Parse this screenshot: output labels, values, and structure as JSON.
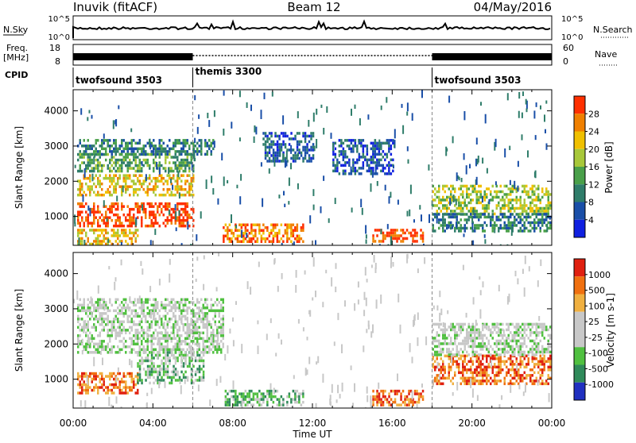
{
  "header": {
    "station": "Inuvik (fitACF)",
    "beam": "Beam 12",
    "date": "04/May/2016"
  },
  "top_panels": {
    "nsky_label": "N.Sky",
    "nsky_ticks": [
      "10^5",
      "10^0"
    ],
    "nsearch_label": "N.Search",
    "nsearch_ticks": [
      "10^5",
      "10^0"
    ],
    "freq_label": "Freq.",
    "freq_unit": "[MHz]",
    "freq_ticks": [
      "18",
      "8"
    ],
    "nave_label": "Nave",
    "nave_ticks": [
      "60",
      "0"
    ],
    "cpid_label": "CPID",
    "cpid_segments": [
      {
        "name": "twofsound 3503",
        "start": 0,
        "end": 6
      },
      {
        "name": "themis 3300",
        "start": 6,
        "end": 18
      },
      {
        "name": "twofsound 3503",
        "start": 18,
        "end": 24
      }
    ]
  },
  "x_axis": {
    "label": "Time UT",
    "ticks": [
      "00:00",
      "04:00",
      "08:00",
      "12:00",
      "16:00",
      "20:00",
      "00:00"
    ]
  },
  "power_panel": {
    "ylabel": "Slant Range [km]",
    "yticks": [
      "4000",
      "3000",
      "2000",
      "1000"
    ],
    "colorbar_label": "Power [dB]",
    "colorbar_ticks": [
      "28",
      "24",
      "20",
      "16",
      "12",
      "8",
      "4"
    ]
  },
  "velocity_panel": {
    "ylabel": "Slant Range [km]",
    "yticks": [
      "4000",
      "3000",
      "2000",
      "1000"
    ],
    "colorbar_label": "Velocity [m s-1]",
    "colorbar_ticks": [
      "1000",
      "500",
      "100",
      "25",
      "-25",
      "-100",
      "-500",
      "-1000"
    ]
  },
  "chart_data": {
    "type": "heatmap",
    "x_range_hours": [
      0,
      24
    ],
    "y_range_km": [
      180,
      4600
    ],
    "power_colors": [
      "#1020e0",
      "#1a4fa8",
      "#2f7d6a",
      "#4aa04a",
      "#a8c83a",
      "#f0c000",
      "#f08000",
      "#ff3000"
    ],
    "velocity_colors": [
      "#2030c0",
      "#2f8a5a",
      "#50c040",
      "#c8c8c8",
      "#c8c8c8",
      "#f0b040",
      "#f07010",
      "#e02010"
    ],
    "power_regions": [
      {
        "t0": 0.2,
        "t1": 6.0,
        "r0": 700,
        "r1": 1400,
        "level": 7
      },
      {
        "t0": 0.2,
        "t1": 6.0,
        "r0": 1600,
        "r1": 2200,
        "level": 5
      },
      {
        "t0": 0.2,
        "t1": 6.0,
        "r0": 2300,
        "r1": 2800,
        "level": 3
      },
      {
        "t0": 0.2,
        "t1": 7.0,
        "r0": 2800,
        "r1": 3200,
        "level": 2
      },
      {
        "t0": 0.2,
        "t1": 3.2,
        "r0": 250,
        "r1": 650,
        "level": 5
      },
      {
        "t0": 7.5,
        "t1": 11.5,
        "r0": 250,
        "r1": 800,
        "level": 6
      },
      {
        "t0": 9.5,
        "t1": 12.0,
        "r0": 2600,
        "r1": 3400,
        "level": 1
      },
      {
        "t0": 13.0,
        "t1": 16.0,
        "r0": 2200,
        "r1": 3200,
        "level": 1
      },
      {
        "t0": 15.0,
        "t1": 17.5,
        "r0": 300,
        "r1": 650,
        "level": 7
      },
      {
        "t0": 18.0,
        "t1": 24.0,
        "r0": 1100,
        "r1": 1900,
        "level": 4
      },
      {
        "t0": 18.0,
        "t1": 24.0,
        "r0": 600,
        "r1": 1100,
        "level": 2
      }
    ],
    "velocity_regions": [
      {
        "t0": 0.2,
        "t1": 3.2,
        "r0": 600,
        "r1": 1200,
        "level": 6
      },
      {
        "t0": 3.2,
        "t1": 6.5,
        "r0": 900,
        "r1": 1800,
        "level": 2
      },
      {
        "t0": 0.2,
        "t1": 7.5,
        "r0": 1800,
        "r1": 3300,
        "level": 3
      },
      {
        "t0": 7.5,
        "t1": 11.5,
        "r0": 300,
        "r1": 700,
        "level": 2
      },
      {
        "t0": 15.0,
        "t1": 17.5,
        "r0": 300,
        "r1": 700,
        "level": 6
      },
      {
        "t0": 18.0,
        "t1": 24.0,
        "r0": 900,
        "r1": 1700,
        "level": 6
      },
      {
        "t0": 18.0,
        "t1": 24.0,
        "r0": 1700,
        "r1": 2600,
        "level": 3
      }
    ]
  }
}
